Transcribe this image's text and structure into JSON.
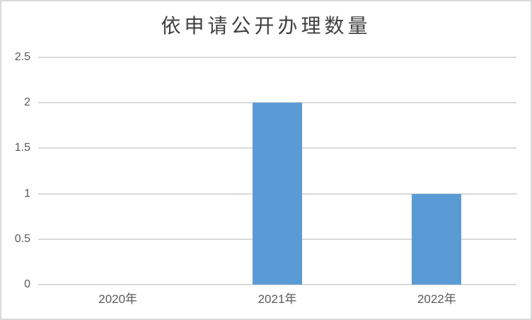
{
  "chart_data": {
    "type": "bar",
    "title": "依申请公开办理数量",
    "categories": [
      "2020年",
      "2021年",
      "2022年"
    ],
    "values": [
      0,
      2,
      1
    ],
    "xlabel": "",
    "ylabel": "",
    "ylim": [
      0,
      2.5
    ],
    "ytick_interval": 0.5,
    "yticks": [
      "0",
      "0.5",
      "1",
      "1.5",
      "2",
      "2.5"
    ],
    "grid": "horizontal-gridlines-on",
    "legend": "none",
    "colors": {
      "bar": "#5b9bd5",
      "gridline": "#d9d9d9",
      "frame_border": "#d9d9d9",
      "tick_text": "#595959",
      "title_text": "#404040",
      "background": "#ffffff"
    }
  }
}
